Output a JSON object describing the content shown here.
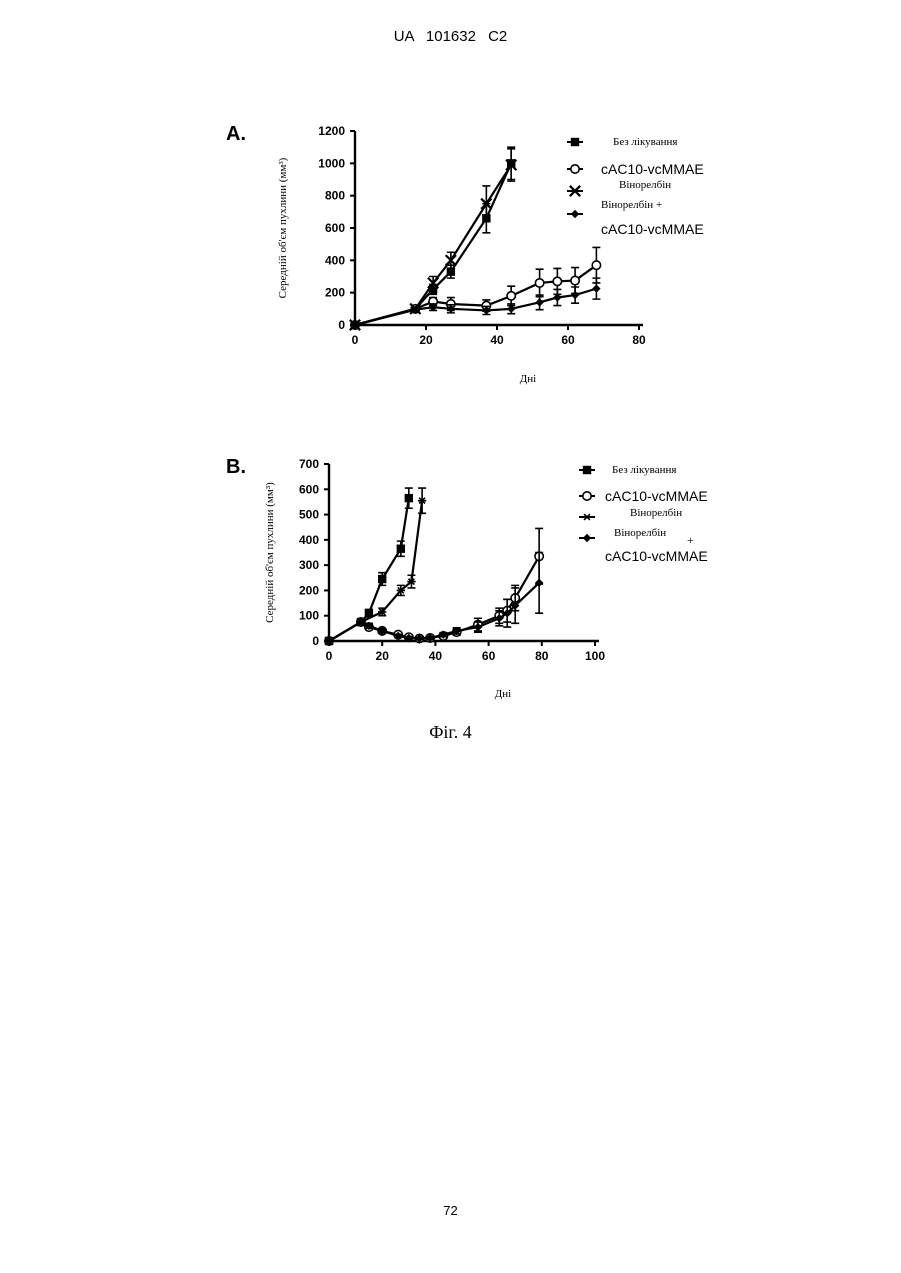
{
  "header": "UA 101632 C2",
  "caption": "Фіг. 4",
  "page_number": "72",
  "chart_data": [
    {
      "type": "line",
      "panel_label": "A.",
      "xlabel": "Дні",
      "ylabel": "Середній об'єм пухлини (мм³)",
      "xlim": [
        0,
        80
      ],
      "ylim": [
        0,
        1200
      ],
      "xticks": [
        0,
        20,
        40,
        60,
        80
      ],
      "yticks": [
        0,
        200,
        400,
        600,
        800,
        1000,
        1200
      ],
      "legend": [
        "Без лікування",
        "cAC10-vcMMAE",
        "Вінорелбін",
        "Вінорелбін +",
        "cAC10-vcMMAE"
      ],
      "series": [
        {
          "name": "Без лікування",
          "marker": "square",
          "x": [
            0,
            17,
            22,
            27,
            37,
            44
          ],
          "y": [
            0,
            100,
            220,
            330,
            660,
            1000
          ],
          "err": [
            0,
            10,
            30,
            40,
            90,
            100
          ]
        },
        {
          "name": "cAC10-vcMMAE",
          "marker": "circle",
          "x": [
            0,
            17,
            22,
            27,
            37,
            44,
            52,
            57,
            62,
            68
          ],
          "y": [
            0,
            100,
            145,
            130,
            120,
            180,
            260,
            270,
            275,
            370
          ],
          "err": [
            0,
            10,
            25,
            40,
            35,
            60,
            85,
            80,
            80,
            110
          ]
        },
        {
          "name": "Вінорелбін",
          "marker": "x",
          "x": [
            0,
            17,
            22,
            27,
            37,
            44
          ],
          "y": [
            0,
            100,
            260,
            400,
            750,
            990
          ],
          "err": [
            0,
            10,
            40,
            50,
            110,
            100
          ]
        },
        {
          "name": "Вінорелбін + cAC10-vcMMAE",
          "marker": "diamond",
          "x": [
            0,
            17,
            22,
            27,
            37,
            44,
            52,
            57,
            62,
            68
          ],
          "y": [
            0,
            95,
            110,
            100,
            90,
            100,
            140,
            170,
            185,
            225
          ],
          "err": [
            0,
            10,
            20,
            25,
            25,
            30,
            45,
            50,
            50,
            65
          ]
        }
      ]
    },
    {
      "type": "line",
      "panel_label": "B.",
      "xlabel": "Дні",
      "ylabel": "Середній об'єм пухлини (мм³)",
      "xlim": [
        0,
        100
      ],
      "ylim": [
        0,
        700
      ],
      "xticks": [
        0,
        20,
        40,
        60,
        80,
        100
      ],
      "yticks": [
        0,
        100,
        200,
        300,
        400,
        500,
        600,
        700
      ],
      "legend": [
        "Без лікування",
        "cAC10-vcMMAE",
        "Вінорелбін",
        "Вінорелбін",
        "+",
        "cAC10-vcMMAE"
      ],
      "series": [
        {
          "name": "Без лікування",
          "marker": "square",
          "x": [
            0,
            12,
            15,
            20,
            27,
            30
          ],
          "y": [
            0,
            75,
            110,
            245,
            365,
            565
          ],
          "err": [
            0,
            8,
            15,
            25,
            30,
            40
          ]
        },
        {
          "name": "cAC10-vcMMAE",
          "marker": "circle",
          "x": [
            0,
            12,
            15,
            20,
            26,
            30,
            34,
            38,
            43,
            48,
            56,
            64,
            67,
            70,
            79
          ],
          "y": [
            0,
            75,
            55,
            40,
            25,
            15,
            10,
            12,
            20,
            35,
            65,
            100,
            120,
            170,
            335
          ],
          "err": [
            0,
            8,
            10,
            8,
            6,
            5,
            4,
            5,
            8,
            12,
            25,
            30,
            45,
            50,
            110
          ]
        },
        {
          "name": "Вінорелбін",
          "marker": "star",
          "x": [
            0,
            12,
            20,
            27,
            31,
            35
          ],
          "y": [
            0,
            75,
            115,
            200,
            235,
            555
          ],
          "err": [
            0,
            8,
            15,
            20,
            25,
            50
          ]
        },
        {
          "name": "Вінорелбін + cAC10-vcMMAE",
          "marker": "diamond",
          "x": [
            0,
            12,
            15,
            20,
            26,
            30,
            34,
            38,
            43,
            48,
            56,
            64,
            67,
            70,
            79
          ],
          "y": [
            0,
            75,
            60,
            40,
            20,
            12,
            10,
            12,
            25,
            40,
            55,
            90,
            110,
            140,
            230
          ],
          "err": [
            0,
            8,
            10,
            8,
            6,
            5,
            4,
            5,
            8,
            12,
            20,
            30,
            55,
            70,
            120
          ]
        }
      ]
    }
  ]
}
